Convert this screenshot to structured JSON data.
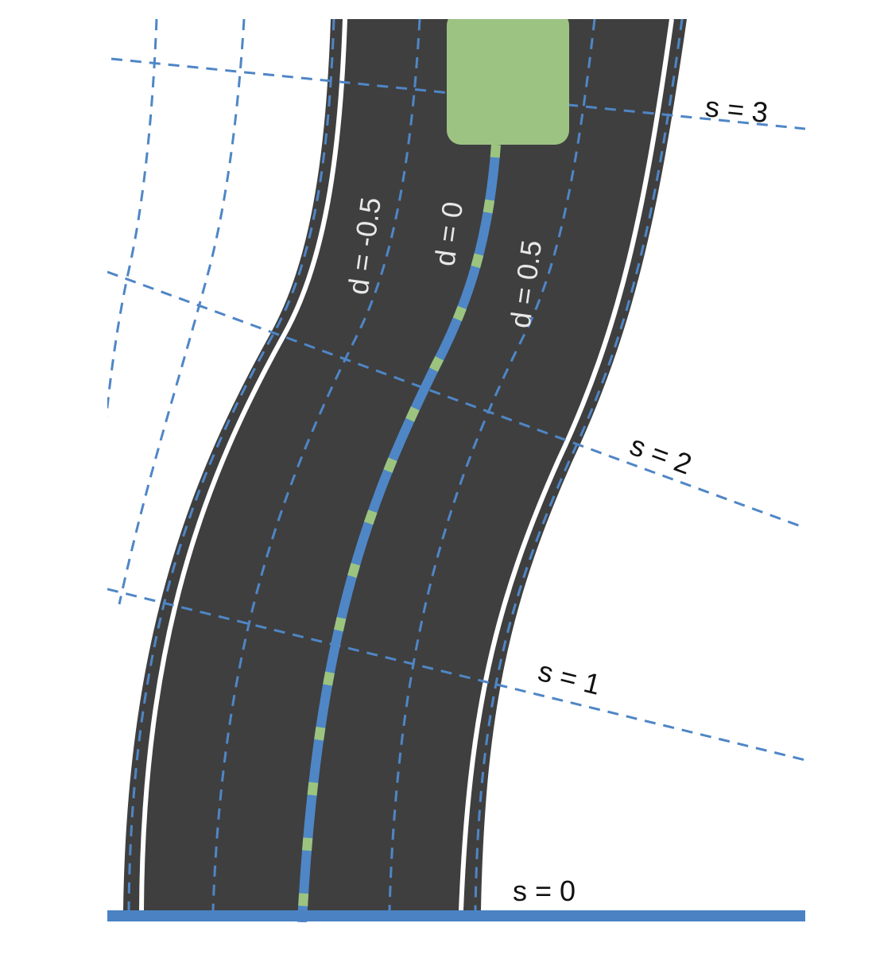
{
  "colors": {
    "road": "#3f3f3f",
    "edge_line": "#ffffff",
    "grid": "#4f86c6",
    "centerline": "#4f86c6",
    "centerline_marks": "#9cc47f",
    "vehicle": "#9dc383",
    "baseline": "#4a82c4",
    "s_label": "#111111",
    "d_label": "#e8e8e8"
  },
  "s_labels": [
    "s = 0",
    "s = 1",
    "s = 2",
    "s = 3"
  ],
  "d_labels": [
    "d = -0.5",
    "d = 0",
    "d = 0.5"
  ],
  "vehicle": {
    "icon": "car-rectangle"
  }
}
